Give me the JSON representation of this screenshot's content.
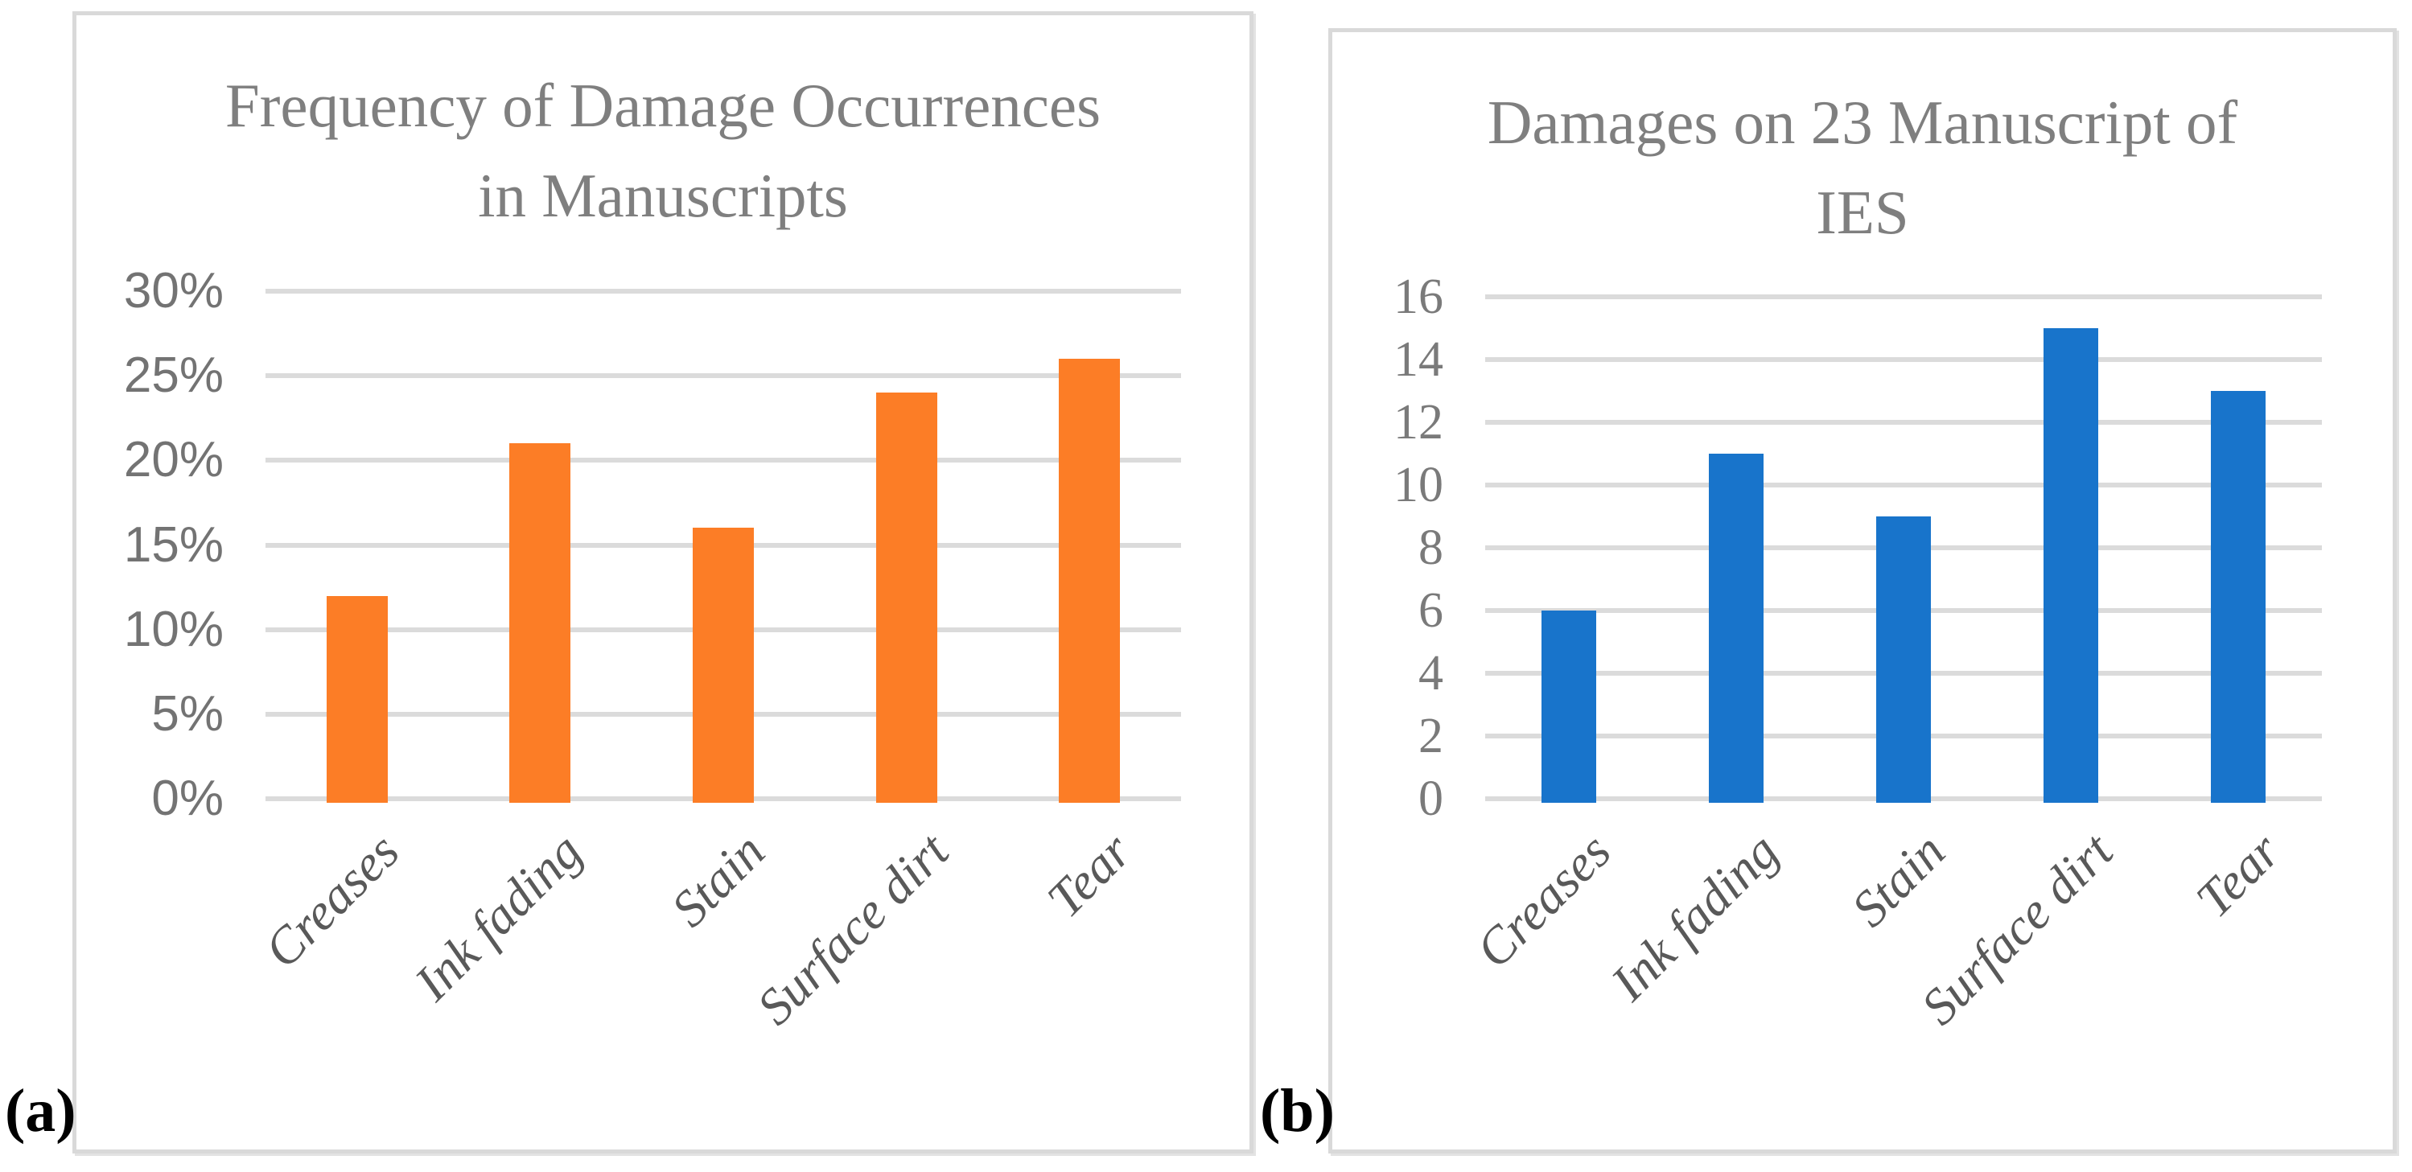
{
  "page": {
    "background": "#ffffff"
  },
  "panels": [
    {
      "id": "a",
      "label": "(a)",
      "title_line1": "Frequency of Damage Occurrences",
      "title_line2": "in Manuscripts"
    },
    {
      "id": "b",
      "label": "(b)",
      "title_line1": "Damages on 23 Manuscript of",
      "title_line2": "IES"
    }
  ],
  "chart_data": [
    {
      "type": "bar",
      "panel": "a",
      "title": "Frequency of Damage Occurrences in Manuscripts",
      "categories": [
        "Creases",
        "Ink fading",
        "Stain",
        "Surface dirt",
        "Tear"
      ],
      "values": [
        12,
        21,
        16,
        24,
        26
      ],
      "value_unit": "percent",
      "ylim": [
        0,
        30
      ],
      "ytick_step": 5,
      "ytick_labels": [
        "0%",
        "5%",
        "10%",
        "15%",
        "20%",
        "25%",
        "30%"
      ],
      "bar_color": "#FC7D26",
      "grid": true,
      "legend": false,
      "xlabel": "",
      "ylabel": ""
    },
    {
      "type": "bar",
      "panel": "b",
      "title": "Damages on 23 Manuscript of IES",
      "categories": [
        "Creases",
        "Ink fading",
        "Stain",
        "Surface dirt",
        "Tear"
      ],
      "values": [
        6,
        11,
        9,
        15,
        13
      ],
      "value_unit": "count",
      "ylim": [
        0,
        16
      ],
      "ytick_step": 2,
      "ytick_labels": [
        "0",
        "2",
        "4",
        "6",
        "8",
        "10",
        "12",
        "14",
        "16"
      ],
      "bar_color": "#1874CB",
      "grid": true,
      "legend": false,
      "xlabel": "",
      "ylabel": ""
    }
  ],
  "colors": {
    "gridline": "#DBDBDB",
    "panel_border": "#D9D9D9",
    "title_text": "#7F7F7F",
    "tick_text": "#757575",
    "category_text": "#595959",
    "panel_label_text": "#000000"
  }
}
